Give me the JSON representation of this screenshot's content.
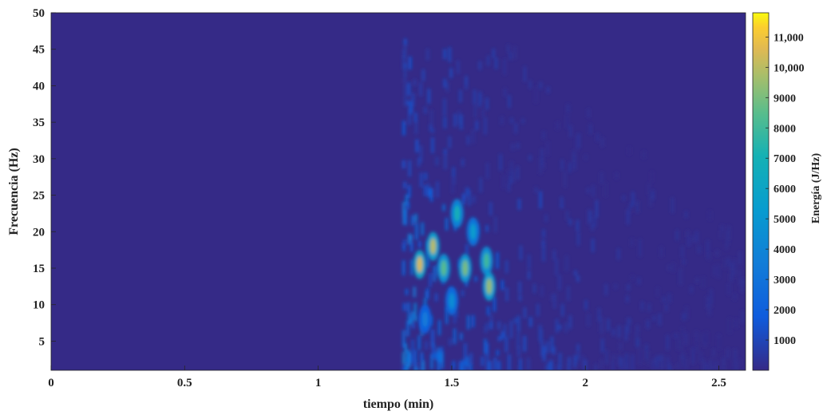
{
  "chart_data": {
    "type": "heatmap",
    "title": "",
    "xlabel": "tiempo (min)",
    "ylabel": "Frecuencia (Hz)",
    "colorbar_label": "Energía (J/Hz)",
    "colormap": "parula",
    "xlim": [
      0,
      2.6
    ],
    "ylim": [
      1,
      50
    ],
    "clim": [
      0,
      11800
    ],
    "x_ticks": [
      0,
      0.5,
      1,
      1.5,
      2,
      2.5
    ],
    "x_tick_labels": [
      "0",
      "0.5",
      "1",
      "1.5",
      "2",
      "2.5"
    ],
    "y_ticks": [
      5,
      10,
      15,
      20,
      25,
      30,
      35,
      40,
      45,
      50
    ],
    "y_tick_labels": [
      "5",
      "10",
      "15",
      "20",
      "25",
      "30",
      "35",
      "40",
      "45",
      "50"
    ],
    "colorbar_ticks": [
      1000,
      2000,
      3000,
      4000,
      5000,
      6000,
      7000,
      8000,
      9000,
      10000,
      11000
    ],
    "colorbar_tick_labels": [
      "1000",
      "2000",
      "3000",
      "4000",
      "5000",
      "6000",
      "7000",
      "8000",
      "9000",
      "10,000",
      "11,000"
    ],
    "signal_onset_min": 1.32,
    "hotspots": [
      {
        "t": 1.38,
        "f": 15.5,
        "energy": 10500
      },
      {
        "t": 1.43,
        "f": 18.0,
        "energy": 10000
      },
      {
        "t": 1.47,
        "f": 15.0,
        "energy": 8500
      },
      {
        "t": 1.52,
        "f": 22.5,
        "energy": 7000
      },
      {
        "t": 1.55,
        "f": 15.0,
        "energy": 9000
      },
      {
        "t": 1.58,
        "f": 20.0,
        "energy": 5500
      },
      {
        "t": 1.63,
        "f": 16.0,
        "energy": 8000
      },
      {
        "t": 1.64,
        "f": 12.5,
        "energy": 9500
      },
      {
        "t": 1.5,
        "f": 10.5,
        "energy": 4500
      },
      {
        "t": 1.4,
        "f": 8.0,
        "energy": 3500
      }
    ]
  }
}
